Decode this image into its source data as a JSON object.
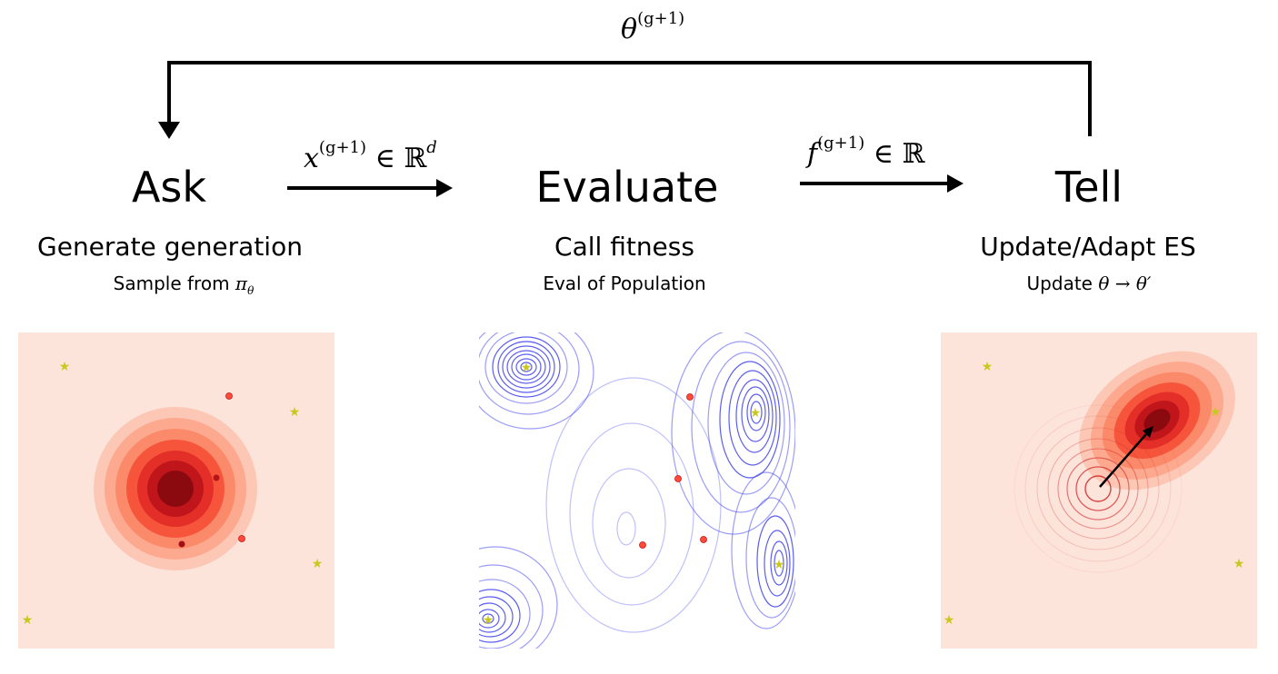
{
  "feedback_label": {
    "base": "θ",
    "sup": "(g+1)"
  },
  "ask_to_eval_label": {
    "base": "x",
    "sup": "(g+1)",
    "rel": " ∈ ",
    "set": "ℝ",
    "set_sup": "d"
  },
  "eval_to_tell_label": {
    "base": "f",
    "sup": "(g+1)",
    "rel": " ∈ ",
    "set": "ℝ"
  },
  "steps": [
    {
      "title": "Ask",
      "subtitle": "Generate generation",
      "detail_text": "Sample from ",
      "detail_math": "π",
      "detail_sub": "θ"
    },
    {
      "title": "Evaluate",
      "subtitle": "Call fitness",
      "detail_text": "Eval of Population"
    },
    {
      "title": "Tell",
      "subtitle": "Update/Adapt ES",
      "detail_text": "Update ",
      "detail_math": "θ → θ′"
    }
  ],
  "colors": {
    "panel_background": "#fde4da",
    "density": [
      "#fcc7b4",
      "#fca98f",
      "#fb8a6a",
      "#f6553c",
      "#e32f27",
      "#c0161b",
      "#8b0a0f"
    ],
    "optimum_star": "#c8c81e",
    "sample_point": "#ff4b3a",
    "contour": "#4a4cf0"
  }
}
